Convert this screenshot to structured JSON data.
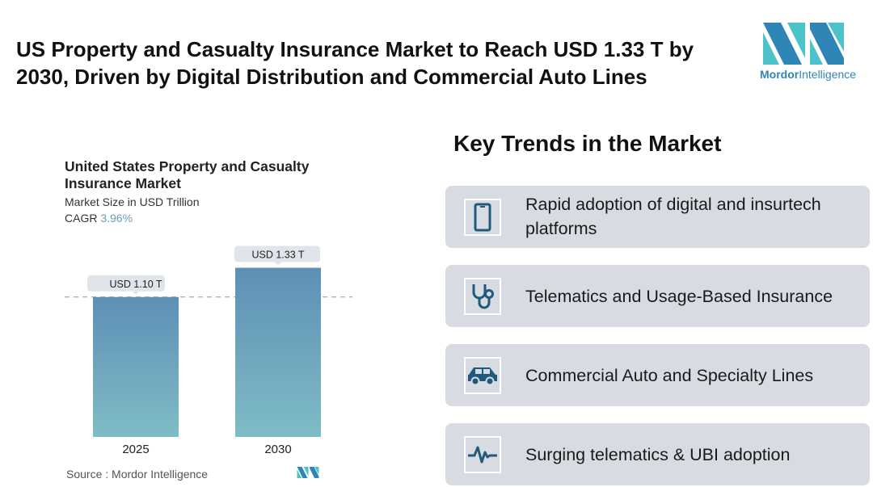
{
  "header": {
    "title": "US Property and Casualty Insurance Market to Reach USD 1.33 T by 2030, Driven by Digital Distribution and Commercial Auto Lines"
  },
  "logo": {
    "brand_bold": "Mordor",
    "brand_rest": "Intelligence"
  },
  "chart_data": {
    "type": "bar",
    "title": "United States Property and Casualty Insurance Market",
    "subtitle": "Market Size in USD Trillion",
    "cagr_label": "CAGR",
    "cagr_value": "3.96%",
    "categories": [
      "2025",
      "2030"
    ],
    "values": [
      1.1,
      1.33
    ],
    "data_labels": [
      "USD 1.10 T",
      "USD 1.33 T"
    ],
    "ylim": [
      0,
      1.4
    ],
    "reference_line": 1.1,
    "source": "Source :  Mordor Intelligence",
    "colors": {
      "bar_top": "#5e8fb5",
      "bar_bottom": "#7fbcc6",
      "label_bg": "#dfe5ea"
    }
  },
  "trends": {
    "heading": "Key Trends in the Market",
    "items": [
      {
        "label": "Rapid adoption of digital and insurtech platforms",
        "icon": "smartphone-icon"
      },
      {
        "label": "Telematics and Usage-Based Insurance",
        "icon": "stethoscope-icon"
      },
      {
        "label": "Commercial Auto and Specialty Lines",
        "icon": "car-icon"
      },
      {
        "label": "Surging telematics & UBI adoption",
        "icon": "pulse-icon"
      }
    ]
  },
  "colors": {
    "card_bg": "#d8dce2",
    "icon": "#1f5a7a",
    "accent": "#2f86b6"
  }
}
